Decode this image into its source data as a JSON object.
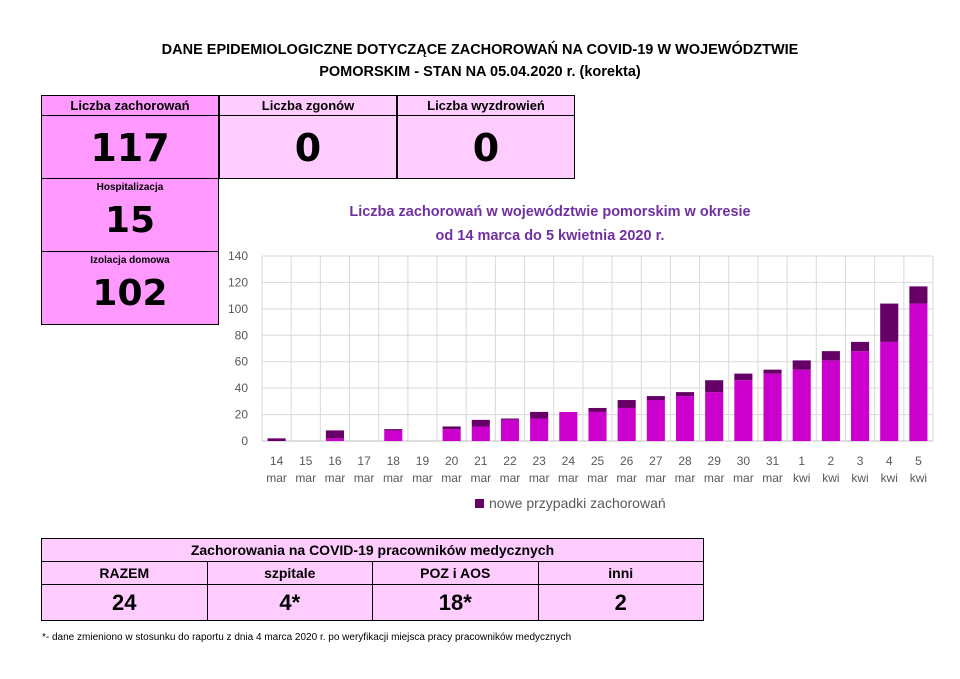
{
  "header": {
    "line1": "DANE EPIDEMIOLOGICZNE DOTYCZĄCE ZACHOROWAŃ NA COVID-19 W WOJEWÓDZTWIE",
    "line2": "POMORSKIM - STAN NA 05.04.2020 r. (korekta)"
  },
  "summary": {
    "cases_label": "Liczba zachorowań",
    "cases_value": "117",
    "deaths_label": "Liczba zgonów",
    "deaths_value": "0",
    "recoveries_label": "Liczba wyzdrowień",
    "recoveries_value": "0",
    "hospital_label": "Hospitalizacja",
    "hospital_value": "15",
    "home_label": "Izolacja domowa",
    "home_value": "102"
  },
  "colors": {
    "primary_box": "#ff99ff",
    "light_box": "#ffccff",
    "bar_previous": "#cc00cc",
    "bar_new": "#660066",
    "chart_title": "#7030a0"
  },
  "chart_data": {
    "type": "bar",
    "stacked": true,
    "title_line1": "Liczba zachorowań w województwie pomorskim w okresie",
    "title_line2": "od 14 marca do 5 kwietnia 2020 r.",
    "categories": [
      {
        "day": "14",
        "month": "mar"
      },
      {
        "day": "15",
        "month": "mar"
      },
      {
        "day": "16",
        "month": "mar"
      },
      {
        "day": "17",
        "month": "mar"
      },
      {
        "day": "18",
        "month": "mar"
      },
      {
        "day": "19",
        "month": "mar"
      },
      {
        "day": "20",
        "month": "mar"
      },
      {
        "day": "21",
        "month": "mar"
      },
      {
        "day": "22",
        "month": "mar"
      },
      {
        "day": "23",
        "month": "mar"
      },
      {
        "day": "24",
        "month": "mar"
      },
      {
        "day": "25",
        "month": "mar"
      },
      {
        "day": "26",
        "month": "mar"
      },
      {
        "day": "27",
        "month": "mar"
      },
      {
        "day": "28",
        "month": "mar"
      },
      {
        "day": "29",
        "month": "mar"
      },
      {
        "day": "30",
        "month": "mar"
      },
      {
        "day": "31",
        "month": "mar"
      },
      {
        "day": "1",
        "month": "kwi"
      },
      {
        "day": "2",
        "month": "kwi"
      },
      {
        "day": "3",
        "month": "kwi"
      },
      {
        "day": "4",
        "month": "kwi"
      },
      {
        "day": "5",
        "month": "kwi"
      }
    ],
    "series": [
      {
        "values": [
          0,
          0,
          2,
          0,
          8,
          0,
          9,
          11,
          16,
          17,
          22,
          22,
          25,
          31,
          34,
          37,
          46,
          51,
          54,
          61,
          68,
          75,
          104
        ]
      },
      {
        "name": "nowe przypadki zachorowań",
        "values": [
          2,
          0,
          6,
          0,
          1,
          0,
          2,
          5,
          1,
          5,
          0,
          3,
          6,
          3,
          3,
          9,
          5,
          3,
          7,
          7,
          7,
          29,
          13
        ]
      }
    ],
    "yticks": [
      "0",
      "20",
      "40",
      "60",
      "80",
      "100",
      "120",
      "140"
    ],
    "ylim": [
      0,
      140
    ],
    "grid": true,
    "legend_position": "bottom"
  },
  "medical": {
    "title": "Zachorowania na COVID-19 pracowników medycznych",
    "headers": [
      "RAZEM",
      "szpitale",
      "POZ i AOS",
      "inni"
    ],
    "values": [
      "24",
      "4*",
      "18*",
      "2"
    ]
  },
  "footnote": "*- dane zmieniono w stosunku do raportu z dnia 4 marca 2020 r. po weryfikacji miejsca pracy pracowników medycznych"
}
